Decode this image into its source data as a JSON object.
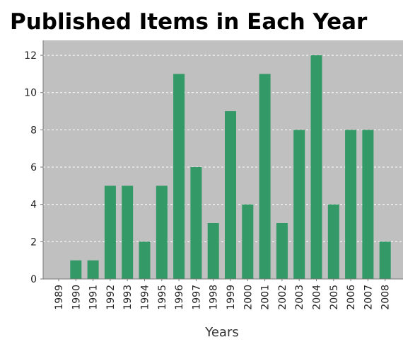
{
  "chart_data": {
    "type": "bar",
    "title": "Published Items in Each Year",
    "xlabel": "Years",
    "ylabel": "",
    "categories": [
      "1989",
      "1990",
      "1991",
      "1992",
      "1993",
      "1994",
      "1995",
      "1996",
      "1997",
      "1998",
      "1999",
      "2000",
      "2001",
      "2002",
      "2003",
      "2004",
      "2005",
      "2006",
      "2007",
      "2008"
    ],
    "values": [
      0,
      1,
      1,
      5,
      5,
      2,
      5,
      11,
      6,
      3,
      9,
      4,
      11,
      3,
      8,
      12,
      4,
      8,
      8,
      2
    ],
    "ylim": [
      0,
      12.8
    ],
    "yticks": [
      0,
      2,
      4,
      6,
      8,
      10,
      12
    ],
    "grid": true,
    "legend": "none",
    "colors": {
      "bar": "#339966",
      "plot_background": "#c0c0c0",
      "grid": "#ffffff"
    }
  }
}
